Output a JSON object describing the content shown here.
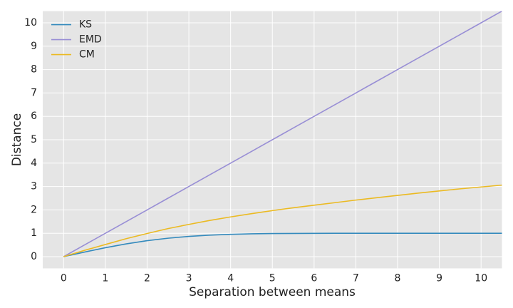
{
  "chart_data": {
    "type": "line",
    "x": [
      0,
      0.5,
      1,
      1.5,
      2,
      2.5,
      3,
      3.5,
      4,
      4.5,
      5,
      5.5,
      6,
      6.5,
      7,
      7.5,
      8,
      8.5,
      9,
      9.5,
      10,
      10.5
    ],
    "series": [
      {
        "name": "KS",
        "color": "#348ABD",
        "values": [
          0,
          0.197,
          0.383,
          0.547,
          0.683,
          0.789,
          0.866,
          0.92,
          0.954,
          0.976,
          0.988,
          0.994,
          0.997,
          0.999,
          1.0,
          1.0,
          1.0,
          1.0,
          1.0,
          1.0,
          1.0,
          1.0
        ]
      },
      {
        "name": "EMD",
        "color": "#988ED5",
        "values": [
          0,
          0.5,
          1,
          1.5,
          2,
          2.5,
          3,
          3.5,
          4,
          4.5,
          5,
          5.5,
          6,
          6.5,
          7,
          7.5,
          8,
          8.5,
          9,
          9.5,
          10,
          10.5
        ]
      },
      {
        "name": "CM",
        "color": "#EBBA22",
        "values": [
          0,
          0.27,
          0.52,
          0.77,
          0.99,
          1.2,
          1.38,
          1.55,
          1.7,
          1.84,
          1.97,
          2.09,
          2.2,
          2.31,
          2.42,
          2.52,
          2.62,
          2.72,
          2.81,
          2.9,
          2.98,
          3.06
        ]
      }
    ],
    "x_label": "Separation between means",
    "y_label": "Distance",
    "xlim": [
      -0.5,
      10.5
    ],
    "ylim": [
      -0.5,
      10.5
    ],
    "xticks": [
      0,
      1,
      2,
      3,
      4,
      5,
      6,
      7,
      8,
      9,
      10
    ],
    "yticks": [
      0,
      1,
      2,
      3,
      4,
      5,
      6,
      7,
      8,
      9,
      10
    ],
    "grid": true,
    "legend": "upper-left"
  }
}
